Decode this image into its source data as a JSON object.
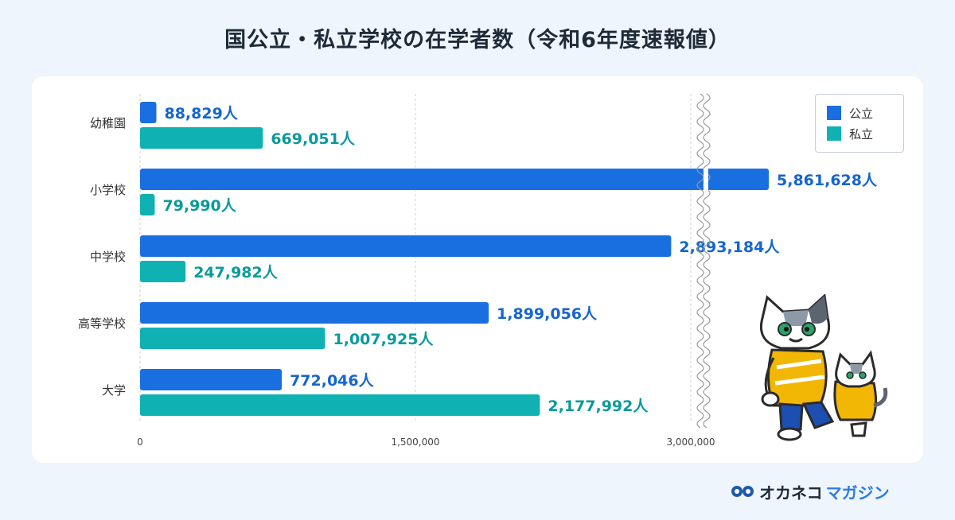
{
  "title": "国公立・私立学校の在学者数（令和6年度速報値）",
  "colors": {
    "public": "#1a6fe0",
    "private": "#0fb1b3",
    "public_label": "#1565d0",
    "private_label": "#0a9a9c"
  },
  "legend": {
    "public": "公立",
    "private": "私立"
  },
  "brand": {
    "name": "オカネコ",
    "sub": "マガジン"
  },
  "chart_data": {
    "type": "bar",
    "orientation": "horizontal",
    "categories": [
      "幼稚園",
      "小学校",
      "中学校",
      "高等学校",
      "大学"
    ],
    "series": [
      {
        "name": "公立",
        "values": [
          88829,
          5861628,
          2893184,
          1899056,
          772046
        ],
        "labels": [
          "88,829人",
          "5,861,628人",
          "2,893,184人",
          "1,899,056人",
          "772,046人"
        ]
      },
      {
        "name": "私立",
        "values": [
          669051,
          79990,
          247982,
          1007925,
          2177992
        ],
        "labels": [
          "669,051人",
          "79,990人",
          "247,982人",
          "1,007,925人",
          "2,177,992人"
        ]
      }
    ],
    "xticks": [
      "0",
      "1,500,000",
      "3,000,000"
    ],
    "xlim": [
      0,
      3000000
    ],
    "axis_break": true,
    "legend_position": "top-right",
    "grid": true
  }
}
